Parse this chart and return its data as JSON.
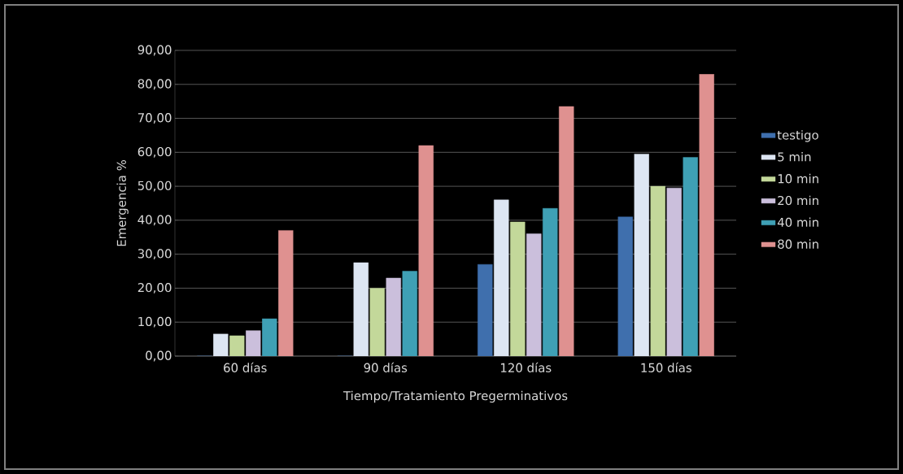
{
  "chart_data": {
    "type": "bar",
    "xlabel": "Tiempo/Tratamiento Pregerminativos",
    "ylabel": "Emergencia %",
    "categories": [
      "60 días",
      "90 días",
      "120 días",
      "150 días"
    ],
    "series": [
      {
        "name": "testigo",
        "color": "#3f6fad",
        "values": [
          0,
          0,
          27,
          41
        ]
      },
      {
        "name": "5 min",
        "color": "#dde6f3",
        "values": [
          6.5,
          27.5,
          46,
          59.5
        ]
      },
      {
        "name": "10 min",
        "color": "#c3d89a",
        "values": [
          6,
          20,
          39.5,
          50
        ]
      },
      {
        "name": "20 min",
        "color": "#cbbfdc",
        "values": [
          7.5,
          23,
          36,
          49.5
        ]
      },
      {
        "name": "40 min",
        "color": "#3fa0b5",
        "values": [
          11,
          25,
          43.5,
          58.5
        ]
      },
      {
        "name": "80 min",
        "color": "#df9190",
        "values": [
          37,
          62,
          73.5,
          83
        ]
      }
    ],
    "ylim": [
      0,
      90
    ],
    "yticks": [
      {
        "value": 0,
        "label": "0,00"
      },
      {
        "value": 10,
        "label": "10,00"
      },
      {
        "value": 20,
        "label": "20,00"
      },
      {
        "value": 30,
        "label": "30,00"
      },
      {
        "value": 40,
        "label": "40,00"
      },
      {
        "value": 50,
        "label": "50,00"
      },
      {
        "value": 60,
        "label": "60,00"
      },
      {
        "value": 70,
        "label": "70,00"
      },
      {
        "value": 80,
        "label": "80,00"
      },
      {
        "value": 90,
        "label": "90,00"
      }
    ],
    "grid": "y",
    "legend": "right"
  }
}
